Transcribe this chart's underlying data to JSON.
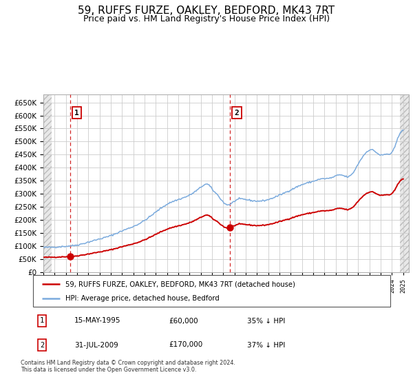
{
  "title": "59, RUFFS FURZE, OAKLEY, BEDFORD, MK43 7RT",
  "subtitle": "Price paid vs. HM Land Registry's House Price Index (HPI)",
  "ylim": [
    0,
    680000
  ],
  "yticks": [
    0,
    50000,
    100000,
    150000,
    200000,
    250000,
    300000,
    350000,
    400000,
    450000,
    500000,
    550000,
    600000,
    650000
  ],
  "sale1_date": 1995.37,
  "sale1_price": 60000,
  "sale2_date": 2009.58,
  "sale2_price": 170000,
  "legend_label_red": "59, RUFFS FURZE, OAKLEY, BEDFORD, MK43 7RT (detached house)",
  "legend_label_blue": "HPI: Average price, detached house, Bedford",
  "table_row1": [
    "1",
    "15-MAY-1995",
    "£60,000",
    "35% ↓ HPI"
  ],
  "table_row2": [
    "2",
    "31-JUL-2009",
    "£170,000",
    "37% ↓ HPI"
  ],
  "footnote": "Contains HM Land Registry data © Crown copyright and database right 2024.\nThis data is licensed under the Open Government Licence v3.0.",
  "hpi_color": "#7aaadd",
  "sale_color": "#cc0000",
  "plot_bg_color": "#ffffff",
  "grid_color": "#cccccc",
  "hatch_color": "#dddddd",
  "title_fontsize": 11,
  "subtitle_fontsize": 9
}
